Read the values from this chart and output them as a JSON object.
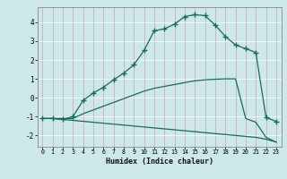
{
  "xlabel": "Humidex (Indice chaleur)",
  "x_ticks": [
    0,
    1,
    2,
    3,
    4,
    5,
    6,
    7,
    8,
    9,
    10,
    11,
    12,
    13,
    14,
    15,
    16,
    17,
    18,
    19,
    20,
    21,
    22,
    23
  ],
  "ylim": [
    -2.6,
    4.8
  ],
  "xlim": [
    -0.5,
    23.5
  ],
  "background_color": "#cce8e8",
  "grid_color": "#e0f0f0",
  "line_color": "#1a6b5a",
  "line1_x": [
    0,
    1,
    2,
    3,
    4,
    5,
    6,
    7,
    8,
    9,
    10,
    11,
    12,
    13,
    14,
    15,
    16,
    17,
    18,
    19,
    20,
    21,
    22,
    23
  ],
  "line1_y": [
    -1.1,
    -1.1,
    -1.15,
    -1.0,
    -0.15,
    0.25,
    0.55,
    0.95,
    1.3,
    1.75,
    2.5,
    3.55,
    3.65,
    3.9,
    4.3,
    4.4,
    4.35,
    3.85,
    3.25,
    2.8,
    2.6,
    2.4,
    -1.05,
    -1.25
  ],
  "line2_x": [
    0,
    1,
    2,
    3,
    4,
    5,
    6,
    7,
    8,
    9,
    10,
    11,
    12,
    13,
    14,
    15,
    16,
    17,
    18,
    19,
    20,
    21,
    22,
    23
  ],
  "line2_y": [
    -1.1,
    -1.1,
    -1.1,
    -1.1,
    -0.85,
    -0.65,
    -0.45,
    -0.25,
    -0.05,
    0.15,
    0.35,
    0.5,
    0.6,
    0.7,
    0.8,
    0.9,
    0.95,
    0.98,
    1.0,
    1.0,
    -1.1,
    -1.3,
    -2.1,
    -2.35
  ],
  "line3_x": [
    0,
    1,
    2,
    3,
    4,
    5,
    6,
    7,
    8,
    9,
    10,
    11,
    12,
    13,
    14,
    15,
    16,
    17,
    18,
    19,
    20,
    21,
    22,
    23
  ],
  "line3_y": [
    -1.1,
    -1.1,
    -1.15,
    -1.2,
    -1.25,
    -1.3,
    -1.35,
    -1.4,
    -1.45,
    -1.5,
    -1.55,
    -1.6,
    -1.65,
    -1.7,
    -1.75,
    -1.8,
    -1.85,
    -1.9,
    -1.95,
    -2.0,
    -2.05,
    -2.1,
    -2.2,
    -2.35
  ],
  "yticks": [
    -2,
    -1,
    0,
    1,
    2,
    3,
    4
  ]
}
